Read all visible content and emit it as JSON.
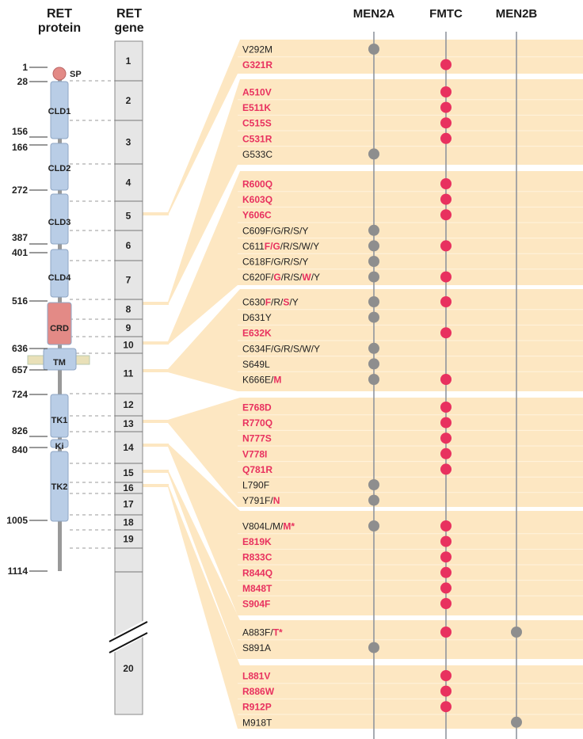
{
  "headers": {
    "protein": [
      "RET",
      "protein"
    ],
    "gene": [
      "RET",
      "gene"
    ],
    "columns": [
      "MEN2A",
      "FMTC",
      "MEN2B"
    ]
  },
  "colors": {
    "band": "#fde7c2",
    "red": "#e8315f",
    "gray": "#8e8e8e",
    "domain": "#b9cde6",
    "crd": "#e38a86",
    "exon": "#e6e6e6"
  },
  "protein_positions": [
    "1",
    "28",
    "156",
    "166",
    "272",
    "387",
    "401",
    "516",
    "636",
    "657",
    "724",
    "826",
    "840",
    "1005",
    "1114"
  ],
  "domains": [
    "SP",
    "CLD1",
    "CLD2",
    "CLD3",
    "CLD4",
    "CRD",
    "TM",
    "TK1",
    "Ki",
    "TK2"
  ],
  "exons": [
    "1",
    "2",
    "3",
    "4",
    "5",
    "6",
    "7",
    "8",
    "9",
    "10",
    "11",
    "12",
    "13",
    "14",
    "15",
    "16",
    "17",
    "18",
    "19",
    "",
    "20"
  ],
  "groups": [
    {
      "exon": "5",
      "mutations": [
        {
          "parts": [
            [
              "V292M",
              0
            ]
          ],
          "dots": [
            "MEN2A"
          ]
        },
        {
          "parts": [
            [
              "G321R",
              1
            ]
          ],
          "dots": [
            "FMTC"
          ]
        }
      ]
    },
    {
      "exon": "8",
      "mutations": [
        {
          "parts": [
            [
              "A510V",
              1
            ]
          ],
          "dots": [
            "FMTC"
          ]
        },
        {
          "parts": [
            [
              "E511K",
              1
            ]
          ],
          "dots": [
            "FMTC"
          ]
        },
        {
          "parts": [
            [
              "C515S",
              1
            ]
          ],
          "dots": [
            "FMTC"
          ]
        },
        {
          "parts": [
            [
              "C531R",
              1
            ]
          ],
          "dots": [
            "FMTC"
          ]
        },
        {
          "parts": [
            [
              "G533C",
              0
            ]
          ],
          "dots": [
            "MEN2A"
          ]
        }
      ]
    },
    {
      "exon": "10",
      "mutations": [
        {
          "parts": [
            [
              "R600Q",
              1
            ]
          ],
          "dots": [
            "FMTC"
          ]
        },
        {
          "parts": [
            [
              "K603Q",
              1
            ]
          ],
          "dots": [
            "FMTC"
          ]
        },
        {
          "parts": [
            [
              "Y606C",
              1
            ]
          ],
          "dots": [
            "FMTC"
          ]
        },
        {
          "parts": [
            [
              "C609F/G/R/S/Y",
              0
            ]
          ],
          "dots": [
            "MEN2A"
          ]
        },
        {
          "parts": [
            [
              "C611",
              0
            ],
            [
              "F/G",
              1
            ],
            [
              "/R/S/W/Y",
              0
            ]
          ],
          "dots": [
            "MEN2A",
            "FMTC"
          ]
        },
        {
          "parts": [
            [
              "C618F/G/R/S/Y",
              0
            ]
          ],
          "dots": [
            "MEN2A"
          ]
        },
        {
          "parts": [
            [
              "C620F/",
              0
            ],
            [
              "G",
              1
            ],
            [
              "/R/S/",
              0
            ],
            [
              "W",
              1
            ],
            [
              "/Y",
              0
            ]
          ],
          "dots": [
            "MEN2A",
            "FMTC"
          ]
        }
      ]
    },
    {
      "exon": "11",
      "mutations": [
        {
          "parts": [
            [
              "C630",
              0
            ],
            [
              "F",
              1
            ],
            [
              "/R/",
              0
            ],
            [
              "S",
              1
            ],
            [
              "/Y",
              0
            ]
          ],
          "dots": [
            "MEN2A",
            "FMTC"
          ]
        },
        {
          "parts": [
            [
              "D631Y",
              0
            ]
          ],
          "dots": [
            "MEN2A"
          ]
        },
        {
          "parts": [
            [
              "E632K",
              1
            ]
          ],
          "dots": [
            "FMTC"
          ]
        },
        {
          "parts": [
            [
              "C634F/G/R/S/W/Y",
              0
            ]
          ],
          "dots": [
            "MEN2A"
          ]
        },
        {
          "parts": [
            [
              "S649L",
              0
            ]
          ],
          "dots": [
            "MEN2A"
          ]
        },
        {
          "parts": [
            [
              "K666E/",
              0
            ],
            [
              "M",
              1
            ]
          ],
          "dots": [
            "MEN2A",
            "FMTC"
          ]
        }
      ]
    },
    {
      "exon": "13",
      "mutations": [
        {
          "parts": [
            [
              "E768D",
              1
            ]
          ],
          "dots": [
            "FMTC"
          ]
        },
        {
          "parts": [
            [
              "R770Q",
              1
            ]
          ],
          "dots": [
            "FMTC"
          ]
        },
        {
          "parts": [
            [
              "N777S",
              1
            ]
          ],
          "dots": [
            "FMTC"
          ]
        },
        {
          "parts": [
            [
              "V778I",
              1
            ]
          ],
          "dots": [
            "FMTC"
          ]
        },
        {
          "parts": [
            [
              "Q781R",
              1
            ]
          ],
          "dots": [
            "FMTC"
          ]
        },
        {
          "parts": [
            [
              "L790F",
              0
            ]
          ],
          "dots": [
            "MEN2A"
          ]
        },
        {
          "parts": [
            [
              "Y791F/",
              0
            ],
            [
              "N",
              1
            ]
          ],
          "dots": [
            "MEN2A"
          ]
        }
      ]
    },
    {
      "exon": "14",
      "mutations": [
        {
          "parts": [
            [
              "V804L/M/",
              0
            ],
            [
              "M*",
              1
            ]
          ],
          "dots": [
            "MEN2A",
            "FMTC"
          ]
        },
        {
          "parts": [
            [
              "E819K",
              1
            ]
          ],
          "dots": [
            "FMTC"
          ]
        },
        {
          "parts": [
            [
              "R833C",
              1
            ]
          ],
          "dots": [
            "FMTC"
          ]
        },
        {
          "parts": [
            [
              "R844Q",
              1
            ]
          ],
          "dots": [
            "FMTC"
          ]
        },
        {
          "parts": [
            [
              "M848T",
              1
            ]
          ],
          "dots": [
            "FMTC"
          ]
        },
        {
          "parts": [
            [
              "S904F",
              1
            ]
          ],
          "dots": [
            "FMTC"
          ]
        }
      ]
    },
    {
      "exon": "15",
      "mutations": [
        {
          "parts": [
            [
              "A883F/",
              0
            ],
            [
              "T*",
              1
            ]
          ],
          "dots": [
            "FMTC",
            "MEN2B"
          ]
        },
        {
          "parts": [
            [
              "S891A",
              0
            ]
          ],
          "dots": [
            "MEN2A"
          ]
        }
      ]
    },
    {
      "exon": "16",
      "mutations": [
        {
          "parts": [
            [
              "L881V",
              1
            ]
          ],
          "dots": [
            "FMTC"
          ]
        },
        {
          "parts": [
            [
              "R886W",
              1
            ]
          ],
          "dots": [
            "FMTC"
          ]
        },
        {
          "parts": [
            [
              "R912P",
              1
            ]
          ],
          "dots": [
            "FMTC"
          ]
        },
        {
          "parts": [
            [
              "M918T",
              0
            ]
          ],
          "dots": [
            "MEN2B"
          ]
        }
      ]
    }
  ]
}
